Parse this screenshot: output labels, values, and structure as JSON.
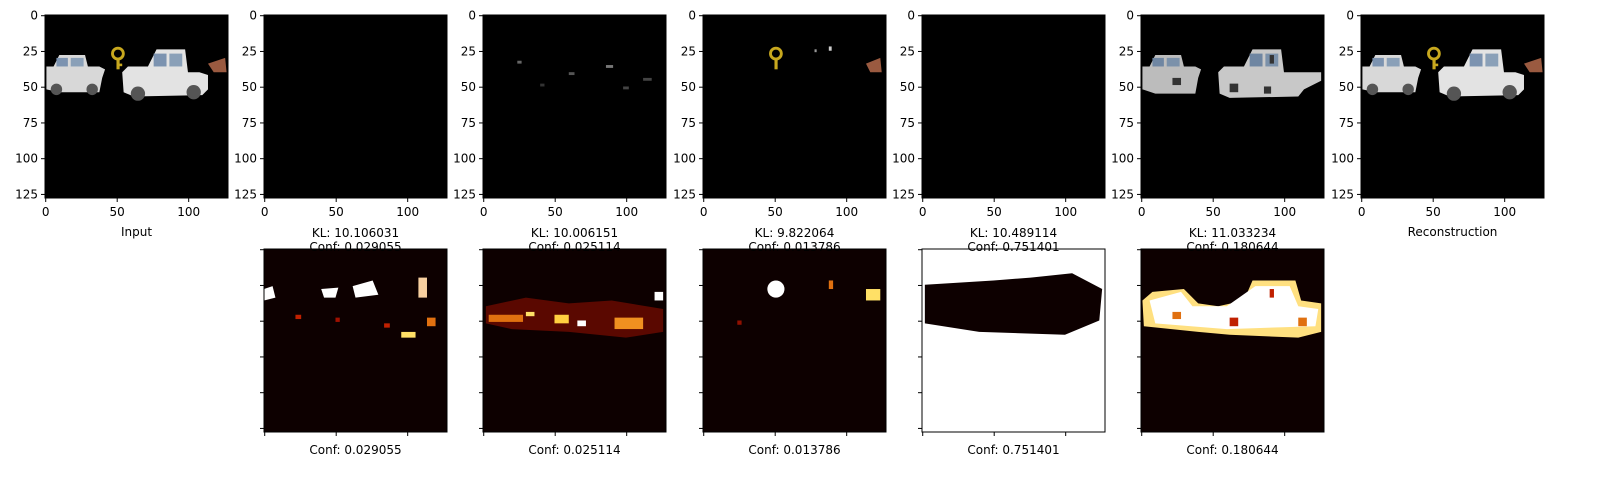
{
  "figure": {
    "description_labels": {
      "input": "Input",
      "reconstruction": "Reconstruction"
    }
  },
  "chart_data": [
    {
      "type": "heatmap",
      "panel": "input",
      "xlabel": "Input",
      "xlim": [
        0,
        127
      ],
      "ylim": [
        127,
        0
      ],
      "xticks": [
        0,
        50,
        100
      ],
      "yticks": [
        0,
        25,
        50,
        75,
        100,
        125
      ],
      "content": "rgb-image"
    },
    {
      "type": "heatmap",
      "panel": "slot-1-reconstruction",
      "xlabel_lines": [
        "KL: 10.106031",
        "Conf: 0.029055"
      ],
      "xlim": [
        0,
        127
      ],
      "ylim": [
        127,
        0
      ],
      "xticks": [
        0,
        50,
        100
      ],
      "yticks": [
        0,
        25,
        50,
        75,
        100,
        125
      ],
      "content": "rgb-image"
    },
    {
      "type": "heatmap",
      "panel": "slot-2-reconstruction",
      "xlabel_lines": [
        "KL: 10.006151",
        "Conf: 0.025114"
      ],
      "xlim": [
        0,
        127
      ],
      "ylim": [
        127,
        0
      ],
      "xticks": [
        0,
        50,
        100
      ],
      "yticks": [
        0,
        25,
        50,
        75,
        100,
        125
      ],
      "content": "rgb-image"
    },
    {
      "type": "heatmap",
      "panel": "slot-3-reconstruction",
      "xlabel_lines": [
        "KL: 9.822064",
        "Conf: 0.013786"
      ],
      "xlim": [
        0,
        127
      ],
      "ylim": [
        127,
        0
      ],
      "xticks": [
        0,
        50,
        100
      ],
      "yticks": [
        0,
        25,
        50,
        75,
        100,
        125
      ],
      "content": "rgb-image"
    },
    {
      "type": "heatmap",
      "panel": "slot-4-reconstruction",
      "xlabel_lines": [
        "KL: 10.489114",
        "Conf: 0.751401"
      ],
      "xlim": [
        0,
        127
      ],
      "ylim": [
        127,
        0
      ],
      "xticks": [
        0,
        50,
        100
      ],
      "yticks": [
        0,
        25,
        50,
        75,
        100,
        125
      ],
      "content": "rgb-image"
    },
    {
      "type": "heatmap",
      "panel": "slot-5-reconstruction",
      "xlabel_lines": [
        "KL: 11.033234",
        "Conf: 0.180644"
      ],
      "xlim": [
        0,
        127
      ],
      "ylim": [
        127,
        0
      ],
      "xticks": [
        0,
        50,
        100
      ],
      "yticks": [
        0,
        25,
        50,
        75,
        100,
        125
      ],
      "content": "rgb-image"
    },
    {
      "type": "heatmap",
      "panel": "reconstruction",
      "xlabel": "Reconstruction",
      "xlim": [
        0,
        127
      ],
      "ylim": [
        127,
        0
      ],
      "xticks": [
        0,
        50,
        100
      ],
      "yticks": [
        0,
        25,
        50,
        75,
        100,
        125
      ],
      "content": "rgb-image"
    },
    {
      "type": "heatmap",
      "panel": "slot-1-mask",
      "xlabel": "Conf: 0.029055",
      "colormap": "hot",
      "tick_labels_hidden": true
    },
    {
      "type": "heatmap",
      "panel": "slot-2-mask",
      "xlabel": "Conf: 0.025114",
      "colormap": "hot",
      "tick_labels_hidden": true
    },
    {
      "type": "heatmap",
      "panel": "slot-3-mask",
      "xlabel": "Conf: 0.013786",
      "colormap": "hot",
      "tick_labels_hidden": true
    },
    {
      "type": "heatmap",
      "panel": "slot-4-mask",
      "xlabel": "Conf: 0.751401",
      "colormap": "hot",
      "tick_labels_hidden": true
    },
    {
      "type": "heatmap",
      "panel": "slot-5-mask",
      "xlabel": "Conf: 0.180644",
      "colormap": "hot",
      "tick_labels_hidden": true
    }
  ],
  "colors": {
    "background": "#000000",
    "mask_background": "#0d0000",
    "truck_white": "#d9d9d9",
    "truck_window": "#7f95b0",
    "key_yellow": "#c8a81e",
    "brown_object": "#9a5a40",
    "heat_bright": "#ffffff",
    "heat_yellow": "#ffe066",
    "heat_orange": "#e07010",
    "heat_red": "#b01000"
  }
}
